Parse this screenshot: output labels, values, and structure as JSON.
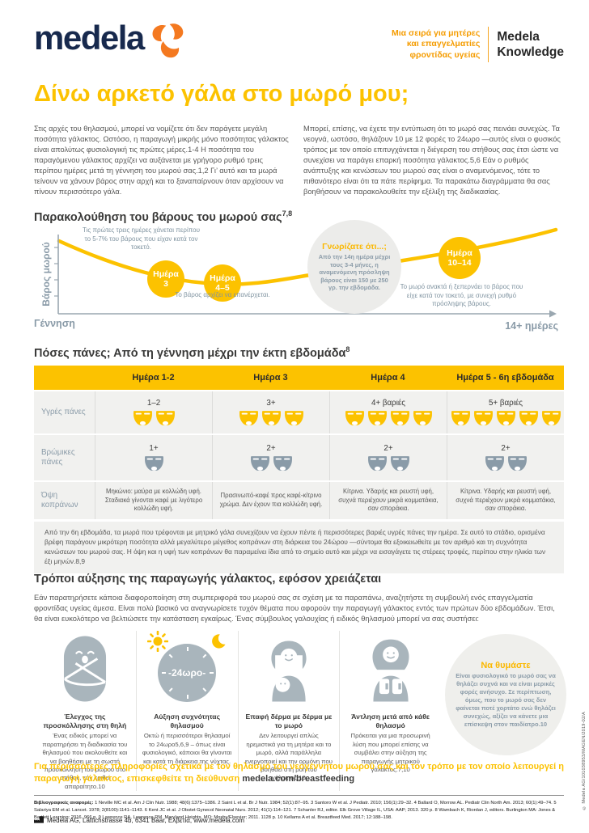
{
  "colors": {
    "yellow": "#FCC200",
    "orange": "#F59C00",
    "navy": "#17294D",
    "slate": "#8A9BA8",
    "icon_gray": "#A9B5BC",
    "table_bg": "#F1F1EF",
    "text": "#575756"
  },
  "header": {
    "logo_text": "medela",
    "series_line1": "Μια σειρά για μητέρες",
    "series_line2": "και επαγγελματίες",
    "series_line3": "φροντίδας υγείας",
    "knowledge_line1": "Medela",
    "knowledge_line2": "Knowledge"
  },
  "title": "Δίνω αρκετό γάλα στο μωρό μου;",
  "intro": {
    "left": "Στις αρχές του θηλασμού, μπορεί να νομίζετε ότι δεν παράγετε μεγάλη ποσότητα γάλακτος. Ωστόσο, η παραγωγή μικρής μόνο ποσότητας γάλακτος είναι απολύτως φυσιολογική τις πρώτες μέρες.1-4 Η ποσότητα του παραγόμενου γάλακτος αρχίζει να αυξάνεται με γρήγορο ρυθμό τρεις περίπου ημέρες μετά τη γέννηση του μωρού σας.1,2 Γι’ αυτό και τα μωρά τείνουν να χάνουν βάρος στην αρχή και το ξαναπαίρνουν όταν αρχίσουν να πίνουν περισσότερο γάλα.",
    "right": "Μπορεί, επίσης, να έχετε την εντύπωση ότι το μωρό σας πεινάει συνεχώς. Τα νεογνά, ωστόσο, θηλάζουν 10 με 12 φορές το 24ωρο —αυτός είναι ο φυσικός τρόπος με τον οποίο επιτυγχάνεται η διέγερση του στήθους σας έτσι ώστε να συνεχίσει να παράγει επαρκή ποσότητα γάλακτος.5,6 Εάν ο ρυθμός ανάπτυξης και κενώσεων του μωρού σας είναι ο αναμενόμενος, τότε το πιθανότερο είναι ότι τα πάτε περίφημα. Τα παρακάτω διαγράμματα θα σας βοηθήσουν να παρακολουθείτε την εξέλιξη της διαδικασίας."
  },
  "weight_section": {
    "heading": "Παρακολούθηση του βάρους του μωρού σας",
    "heading_sup": "7,8",
    "chart": {
      "type": "line",
      "ylabel": "Βάρος μωρού",
      "x_start": "Γέννηση",
      "x_end": "14+ ημέρες",
      "loss_note": "Τις πρώτες τρεις ημέρες χάνεται περίπου το 5-7% του βάρους που είχαν κατά τον τοκετό.",
      "day3_line1": "Ημέρα",
      "day3_line2": "3",
      "day45_line1": "Ημέρα",
      "day45_line2": "4–5",
      "regain_note": "Το βάρος αρχίζει να επανέρχεται.",
      "know_title": "Γνωρίζατε ότι...;",
      "know_body": "Από την 14η ημέρα μέχρι τους 3-4 μήνες, η αναμενόμενη πρόσληψη βάρους είναι 150 με 250 γρ. την εβδομάδα.",
      "day1014_line1": "Ημέρα",
      "day1014_line2": "10–14",
      "recover_note": "Το μωρό ανακτά ή ξεπερνάει το βάρος που είχε κατά τον τοκετό, με συνεχή ρυθμό πρόσληψης βάρους."
    }
  },
  "diaper_table": {
    "heading": "Πόσες πάνες; Από τη γέννηση μέχρι την έκτη εβδομάδα",
    "heading_sup": "8",
    "row_labels": [
      "Υγρές πάνες",
      "Βρώμικες πάνες",
      "Όψη κοπράνων"
    ],
    "cols": [
      {
        "header": "Ημέρα 1-2",
        "wet_label": "1–2",
        "wet_count": 2,
        "dirty_label": "1+",
        "dirty_count": 1,
        "stool": "Μηκώνιο: μαύρα με κολλώδη υφή. Σταδιακά γίνονται καφέ με λιγότερο κολλώδη υφή."
      },
      {
        "header": "Ημέρα 3",
        "wet_label": "3+",
        "wet_count": 3,
        "dirty_label": "2+",
        "dirty_count": 2,
        "stool": "Πρασινωπό-καφέ προς καφέ-κίτρινο χρώμα. Δεν έχουν πια κολλώδη υφή."
      },
      {
        "header": "Ημέρα 4",
        "wet_label": "4+ βαριές",
        "wet_count": 4,
        "dirty_label": "2+",
        "dirty_count": 2,
        "stool": "Κίτρινα. Υδαρής και ρευστή υφή, συχνά περιέχουν μικρά κομματάκια, σαν σποράκια."
      },
      {
        "header": "Ημέρα 5 - 6η εβδομάδα",
        "wet_label": "5+ βαριές",
        "wet_count": 5,
        "dirty_label": "2+",
        "dirty_count": 2,
        "stool": "Κίτρινα. Υδαρής και ρευστή υφή, συχνά περιέχουν μικρά κομματάκια, σαν σποράκια."
      }
    ],
    "note": "Από την 6η εβδομάδα, τα μωρά που τρέφονται με μητρικό γάλα συνεχίζουν να έχουν πέντε ή περισσότερες βαριές υγρές πάνες την ημέρα. Σε αυτό το στάδιο, ορισμένα βρέφη παράγουν μικρότερη ποσότητα αλλά μεγαλύτερο μέγεθος κοπράνων στη διάρκεια του 24ώρου —σύντομα θα εξοικειωθείτε με τον αριθμό και τη συχνότητα κενώσεων του μωρού σας. Η όψη και η υφή των κοπράνων θα παραμείνει ίδια από το σημείο αυτό και μέχρι να εισαγάγετε τις στέρεες τροφές, περίπου στην ηλικία των έξι μηνών.8,9"
  },
  "increase_section": {
    "heading": "Τρόποι αύξησης της παραγωγής γάλακτος, εφόσον χρειάζεται",
    "intro": "Εάν παρατηρήσετε κάποια διαφοροποίηση στη συμπεριφορά του μωρού σας σε σχέση με τα παραπάνω, αναζητήστε τη συμβουλή ενός επαγγελματία φροντίδας υγείας άμεσα. Είναι πολύ βασικό να αναγνωρίσετε τυχόν θέματα που αφορούν την παραγωγή γάλακτος εντός των πρώτων δύο εβδομάδων. Έτσι, θα είναι ευκολότερο να βελτιώσετε την κατάσταση εγκαίρως. Ένας σύμβουλος γαλουχίας ή ειδικός θηλασμού μπορεί να σας συστήσει:",
    "tips": [
      {
        "icon": "swaddled-baby-icon",
        "title": "Έλεγχος της προσκόλλησης στη θηλή",
        "text": "Ένας ειδικός μπορεί να παρατηρήσει τη διαδικασία του θηλασμού που ακολουθείτε και να βοηθήσει με τη σωστή προσκόλληση του μωρού στο στήθος, εάν κριθεί απαραίτητο.10"
      },
      {
        "icon": "day-night-clock-icon",
        "clock_label": "-24ωρο-",
        "title": "Αύξηση συχνότητας θηλασμού",
        "text": "Οκτώ ή περισσότεροι θηλασμοί το 24ωρο5,6,9 – όπως είναι φυσιολογικό, κάποιοι θα γίνονται και κατά τη διάρκεια της νύχτας."
      },
      {
        "icon": "skin-to-skin-icon",
        "title": "Επαφή δέρμα με δέρμα με το μωρό",
        "text": "Δεν λειτουργεί απλώς ηρεμιστικά για τη μητέρα και το μωρό, αλλά παράλληλα ενεργοποιεί και την ορμόνη που βοηθάει στη ροή του γάλακτος.10"
      },
      {
        "icon": "pumping-icon",
        "title": "Άντληση μετά από κάθε θηλασμό",
        "text": "Πρόκειται για μια προσωρινή λύση που μπορεί επίσης να συμβάλει στην αύξηση της παραγωγής μητρικού γάλακτος.7,10"
      }
    ],
    "remember": {
      "title": "Να θυμάστε",
      "body": "Είναι φυσιολογικό το μωρό σας να θηλάζει συχνά και να είναι μερικές φορές ανήσυχο. Σε περίπτωση, όμως, που το μωρό σας δεν φαίνεται ποτέ χορτάτο ενώ θηλάζει συνεχώς, αξίζει να κάνετε μια επίσκεψη στον παιδίατρο.10"
    }
  },
  "cta": {
    "text": "Για περισσότερες πληροφορίες σχετικά με τον θηλασμό του νεογέννητου μωρού σας και τον τρόπο με τον οποίο λειτουργεί η παραγωγή γάλακτος, επισκεφθείτε τη διεύθυνση ",
    "link": "medela.com/breastfeeding"
  },
  "references": {
    "label": "Βιβλιογραφικές αναφορές:",
    "text": " 1 Neville MC et al. Am J Clin Nutr. 1988; 48(6):1375–1386. 2 Saint L et al. Br J Nutr. 1984; 52(1):87–95. 3 Santoro W et al. J Pediatr. 2010; 156(1):29–32. 4 Ballard O, Morrow AL. Pediatr Clin North Am. 2013; 60(1):49–74. 5 Salariya EM et al. Lancet. 1978; 2(8100):1141–1143. 6 Kent JC et al. J Obstet Gynecol Neonatal Nurs. 2012; 41(1):114–121. 7 Schanler RJ, editor. Elk Grove Village IL, USA: AAP; 2013. 320 p. 8 Wambach K, Riordan J, editors. Burlington MA: Jones & Bartlett Learning; 2016. 966 p. 9 Lawrence RA, Lawrence RM. Maryland Heights, MO: Mosby/Elsevier; 2011. 1128 p. 10 Kellams A et al. Breastfeed Med. 2017; 12:188–198."
  },
  "footer": {
    "address": "Medela AG, Lättichstrasse 4b, 6341 Baar, Ελβετία, www.medela.com"
  },
  "side_note": "© Medela AG/101038953/MAGEN/2019-02/A"
}
